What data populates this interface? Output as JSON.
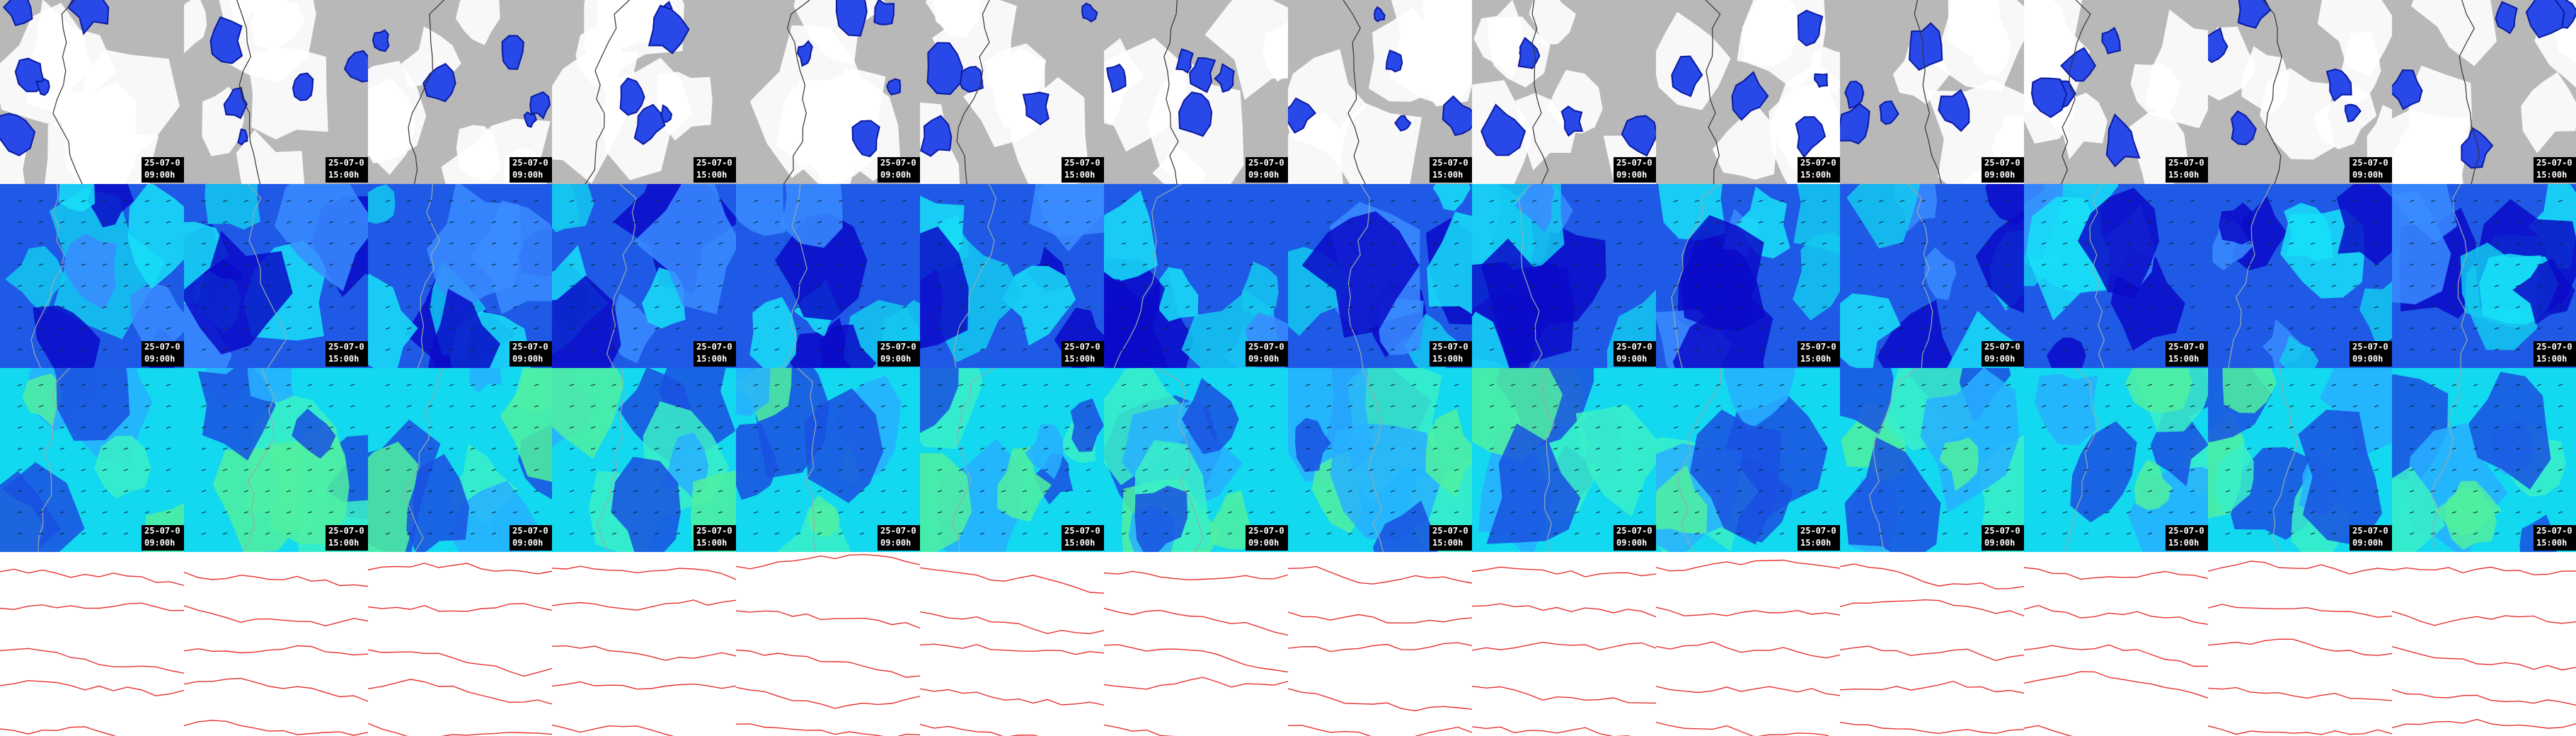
{
  "rows": [
    {
      "tiles": [
        {
          "date": "25-07-0",
          "time": "09:00h"
        },
        {
          "date": "25-07-0",
          "time": "15:00h"
        },
        {
          "date": "25-07-0",
          "time": "09:00h"
        },
        {
          "date": "25-07-0",
          "time": "15:00h"
        },
        {
          "date": "25-07-0",
          "time": "09:00h"
        },
        {
          "date": "25-07-0",
          "time": "15:00h"
        },
        {
          "date": "25-07-0",
          "time": "09:00h"
        },
        {
          "date": "25-07-0",
          "time": "15:00h"
        },
        {
          "date": "25-07-0",
          "time": "09:00h"
        },
        {
          "date": "25-07-0",
          "time": "15:00h"
        },
        {
          "date": "25-07-0",
          "time": "09:00h"
        },
        {
          "date": "25-07-0",
          "time": "15:00h"
        },
        {
          "date": "25-07-0",
          "time": "09:00h"
        },
        {
          "date": "25-07-0",
          "time": "15:00h"
        }
      ]
    },
    {
      "tiles": [
        {
          "date": "25-07-0",
          "time": "09:00h"
        },
        {
          "date": "25-07-0",
          "time": "15:00h"
        },
        {
          "date": "25-07-0",
          "time": "09:00h"
        },
        {
          "date": "25-07-0",
          "time": "15:00h"
        },
        {
          "date": "25-07-0",
          "time": "09:00h"
        },
        {
          "date": "25-07-0",
          "time": "15:00h"
        },
        {
          "date": "25-07-0",
          "time": "09:00h"
        },
        {
          "date": "25-07-0",
          "time": "15:00h"
        },
        {
          "date": "25-07-0",
          "time": "09:00h"
        },
        {
          "date": "25-07-0",
          "time": "15:00h"
        },
        {
          "date": "25-07-0",
          "time": "09:00h"
        },
        {
          "date": "25-07-0",
          "time": "15:00h"
        },
        {
          "date": "25-07-0",
          "time": "09:00h"
        },
        {
          "date": "25-07-0",
          "time": "15:00h"
        }
      ]
    },
    {
      "tiles": [
        {
          "date": "25-07-0",
          "time": "09:00h"
        },
        {
          "date": "25-07-0",
          "time": "15:00h"
        },
        {
          "date": "25-07-0",
          "time": "09:00h"
        },
        {
          "date": "25-07-0",
          "time": "15:00h"
        },
        {
          "date": "25-07-0",
          "time": "09:00h"
        },
        {
          "date": "25-07-0",
          "time": "15:00h"
        },
        {
          "date": "25-07-0",
          "time": "09:00h"
        },
        {
          "date": "25-07-0",
          "time": "15:00h"
        },
        {
          "date": "25-07-0",
          "time": "09:00h"
        },
        {
          "date": "25-07-0",
          "time": "15:00h"
        },
        {
          "date": "25-07-0",
          "time": "09:00h"
        },
        {
          "date": "25-07-0",
          "time": "15:00h"
        },
        {
          "date": "25-07-0",
          "time": "09:00h"
        },
        {
          "date": "25-07-0",
          "time": "15:00h"
        }
      ]
    }
  ]
}
